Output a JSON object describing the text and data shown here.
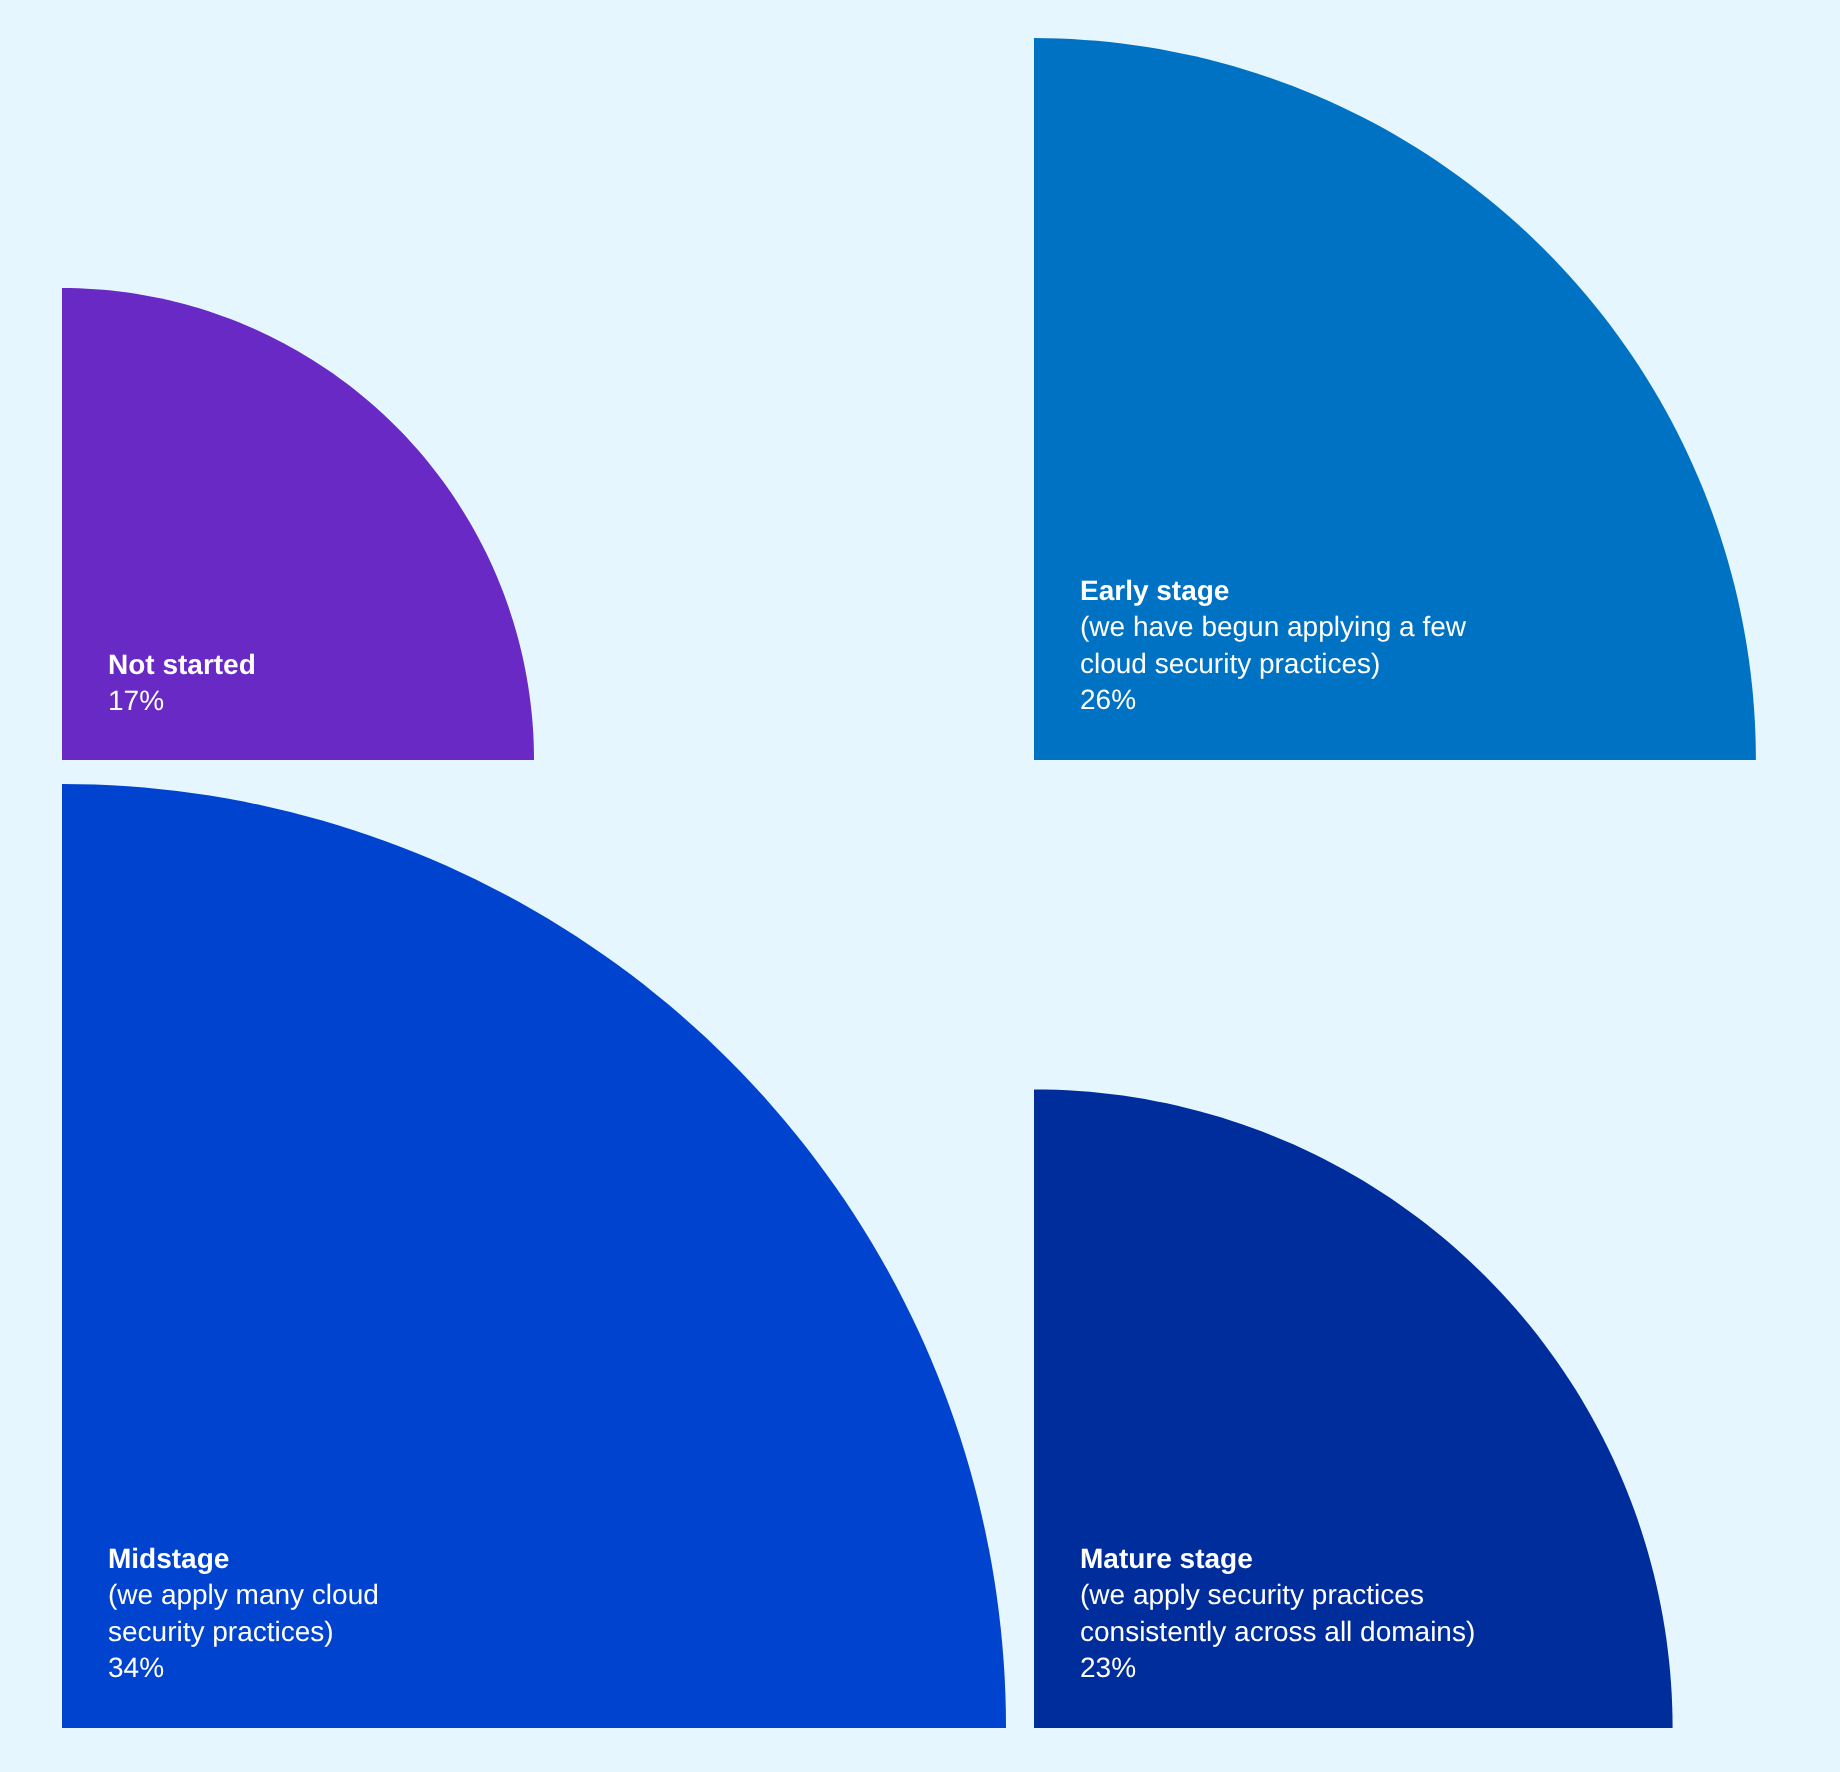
{
  "chart_data": {
    "type": "other",
    "categories": [
      "Not started",
      "Early stage",
      "Midstage",
      "Mature stage"
    ],
    "values": [
      17,
      26,
      34,
      23
    ],
    "colors": [
      "#6929c4",
      "#0072c3",
      "#0043ce",
      "#002d9c"
    ],
    "annotations": [
      null,
      "(we have begun applying a few\ncloud security practices)",
      "(we apply many cloud\nsecurity practices)",
      "(we apply security practices\nconsistently across all domains)"
    ],
    "data_labels": true,
    "value_labels": [
      "17%",
      "26%",
      "34%",
      "23%"
    ]
  }
}
